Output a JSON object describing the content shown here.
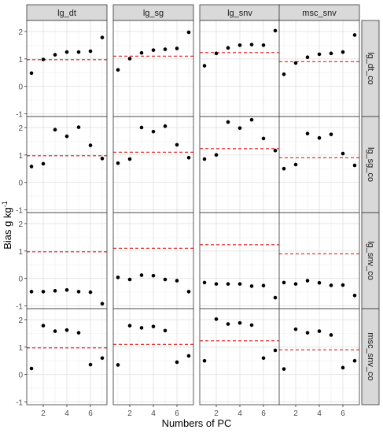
{
  "chart_data": {
    "type": "scatter",
    "facet_columns": [
      "lg_dt",
      "lg_sg",
      "lg_snv",
      "msc_snv"
    ],
    "facet_rows": [
      "lg_dt_co",
      "lg_sg_co",
      "lg_snv_co",
      "msc_snv_co"
    ],
    "xlabel": "Numbers of PC",
    "ylabel": "Bias g kg",
    "ylabel_superscript": "-1",
    "x_ticks": [
      "2",
      "4",
      "6"
    ],
    "y_ticks": [
      "-1",
      "0",
      "1",
      "2"
    ],
    "xlim": [
      0.6,
      7.4
    ],
    "ylim": [
      -1.1,
      2.4
    ],
    "grid": true,
    "reference_line_color": "#e41a1c",
    "point_color": "#000000",
    "panels": [
      {
        "row": 0,
        "col": 0,
        "x": [
          1,
          2,
          3,
          4,
          5,
          6,
          7
        ],
        "y": [
          0.48,
          0.98,
          1.15,
          1.25,
          1.25,
          1.28,
          1.78
        ],
        "ref": 0.97
      },
      {
        "row": 0,
        "col": 1,
        "x": [
          1,
          2,
          3,
          4,
          5,
          6,
          7
        ],
        "y": [
          0.6,
          1.01,
          1.22,
          1.32,
          1.35,
          1.38,
          1.97
        ],
        "ref": 1.1
      },
      {
        "row": 0,
        "col": 2,
        "x": [
          1,
          2,
          3,
          4,
          5,
          6,
          7
        ],
        "y": [
          0.75,
          1.2,
          1.4,
          1.5,
          1.52,
          1.5,
          2.03
        ],
        "ref": 1.23
      },
      {
        "row": 0,
        "col": 3,
        "x": [
          1,
          2,
          3,
          4,
          5,
          6,
          7
        ],
        "y": [
          0.44,
          0.85,
          1.06,
          1.17,
          1.2,
          1.25,
          1.87
        ],
        "ref": 0.9
      },
      {
        "row": 1,
        "col": 0,
        "x": [
          1,
          2,
          3,
          4,
          5,
          6,
          7
        ],
        "y": [
          0.58,
          0.68,
          1.92,
          1.68,
          2.01,
          1.35,
          0.87
        ],
        "ref": 0.97
      },
      {
        "row": 1,
        "col": 1,
        "x": [
          1,
          2,
          3,
          4,
          5,
          6,
          7
        ],
        "y": [
          0.7,
          0.85,
          2.0,
          1.85,
          2.05,
          1.37,
          0.9
        ],
        "ref": 1.1
      },
      {
        "row": 1,
        "col": 2,
        "x": [
          1,
          2,
          3,
          4,
          5,
          6,
          7
        ],
        "y": [
          0.85,
          1.0,
          2.2,
          1.98,
          2.28,
          1.6,
          1.16
        ],
        "ref": 1.23
      },
      {
        "row": 1,
        "col": 3,
        "x": [
          1,
          2,
          3,
          4,
          5,
          6,
          7
        ],
        "y": [
          0.5,
          0.65,
          1.78,
          1.62,
          1.75,
          1.05,
          0.62
        ],
        "ref": 0.9
      },
      {
        "row": 2,
        "col": 0,
        "x": [
          1,
          2,
          3,
          4,
          5,
          6,
          7
        ],
        "y": [
          -0.48,
          -0.48,
          -0.45,
          -0.42,
          -0.48,
          -0.5,
          -0.92
        ],
        "ref": 0.97
      },
      {
        "row": 2,
        "col": 1,
        "x": [
          1,
          2,
          3,
          4,
          5,
          6,
          7
        ],
        "y": [
          0.04,
          -0.04,
          0.12,
          0.1,
          -0.04,
          -0.08,
          -0.48
        ],
        "ref": 1.1
      },
      {
        "row": 2,
        "col": 2,
        "x": [
          1,
          2,
          3,
          4,
          5,
          6,
          7
        ],
        "y": [
          -0.15,
          -0.2,
          -0.2,
          -0.2,
          -0.28,
          -0.26,
          -0.7
        ],
        "ref": 1.23
      },
      {
        "row": 2,
        "col": 3,
        "x": [
          1,
          2,
          3,
          4,
          5,
          6,
          7
        ],
        "y": [
          -0.15,
          -0.2,
          -0.08,
          -0.16,
          -0.25,
          -0.24,
          -0.62
        ],
        "ref": 0.9
      },
      {
        "row": 3,
        "col": 0,
        "x": [
          1,
          2,
          3,
          4,
          5,
          6,
          7
        ],
        "y": [
          0.22,
          1.78,
          1.58,
          1.62,
          1.52,
          0.36,
          0.6
        ],
        "ref": 0.97
      },
      {
        "row": 3,
        "col": 1,
        "x": [
          1,
          2,
          3,
          4,
          5,
          6,
          7
        ],
        "y": [
          0.35,
          1.78,
          1.7,
          1.75,
          1.6,
          0.45,
          0.68
        ],
        "ref": 1.1
      },
      {
        "row": 3,
        "col": 2,
        "x": [
          1,
          2,
          3,
          4,
          5,
          6,
          7
        ],
        "y": [
          0.5,
          2.02,
          1.84,
          1.88,
          1.8,
          0.6,
          0.88
        ],
        "ref": 1.23
      },
      {
        "row": 3,
        "col": 3,
        "x": [
          1,
          2,
          3,
          4,
          5,
          6,
          7
        ],
        "y": [
          0.2,
          1.65,
          1.52,
          1.58,
          1.44,
          0.25,
          0.5
        ],
        "ref": 0.9
      }
    ]
  }
}
